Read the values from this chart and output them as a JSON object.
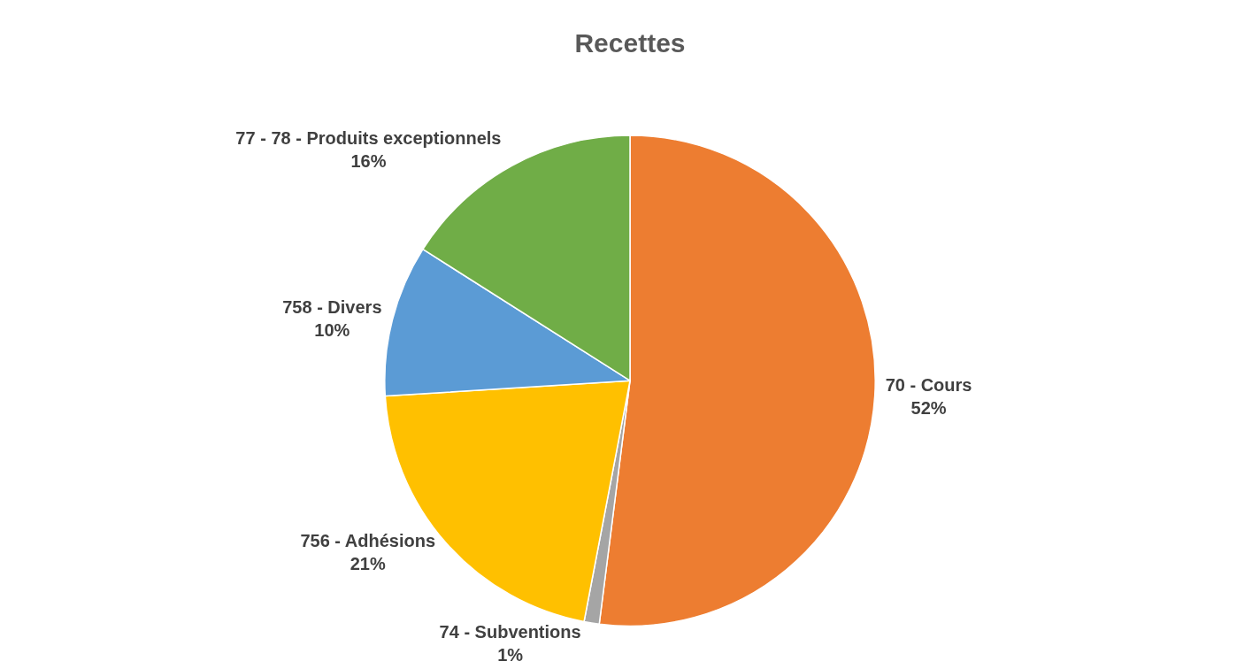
{
  "chart_data": {
    "type": "pie",
    "title": "Recettes",
    "categories": [
      "70 - Cours",
      "74 - Subventions",
      "756 - Adhésions",
      "758 - Divers",
      "77 - 78 - Produits exceptionnels"
    ],
    "values": [
      52,
      1,
      21,
      10,
      16
    ],
    "value_labels": [
      "52%",
      "1%",
      "21%",
      "10%",
      "16%"
    ],
    "colors": [
      "#ed7d31",
      "#a5a5a5",
      "#ffc000",
      "#5b9bd5",
      "#70ad47"
    ]
  }
}
